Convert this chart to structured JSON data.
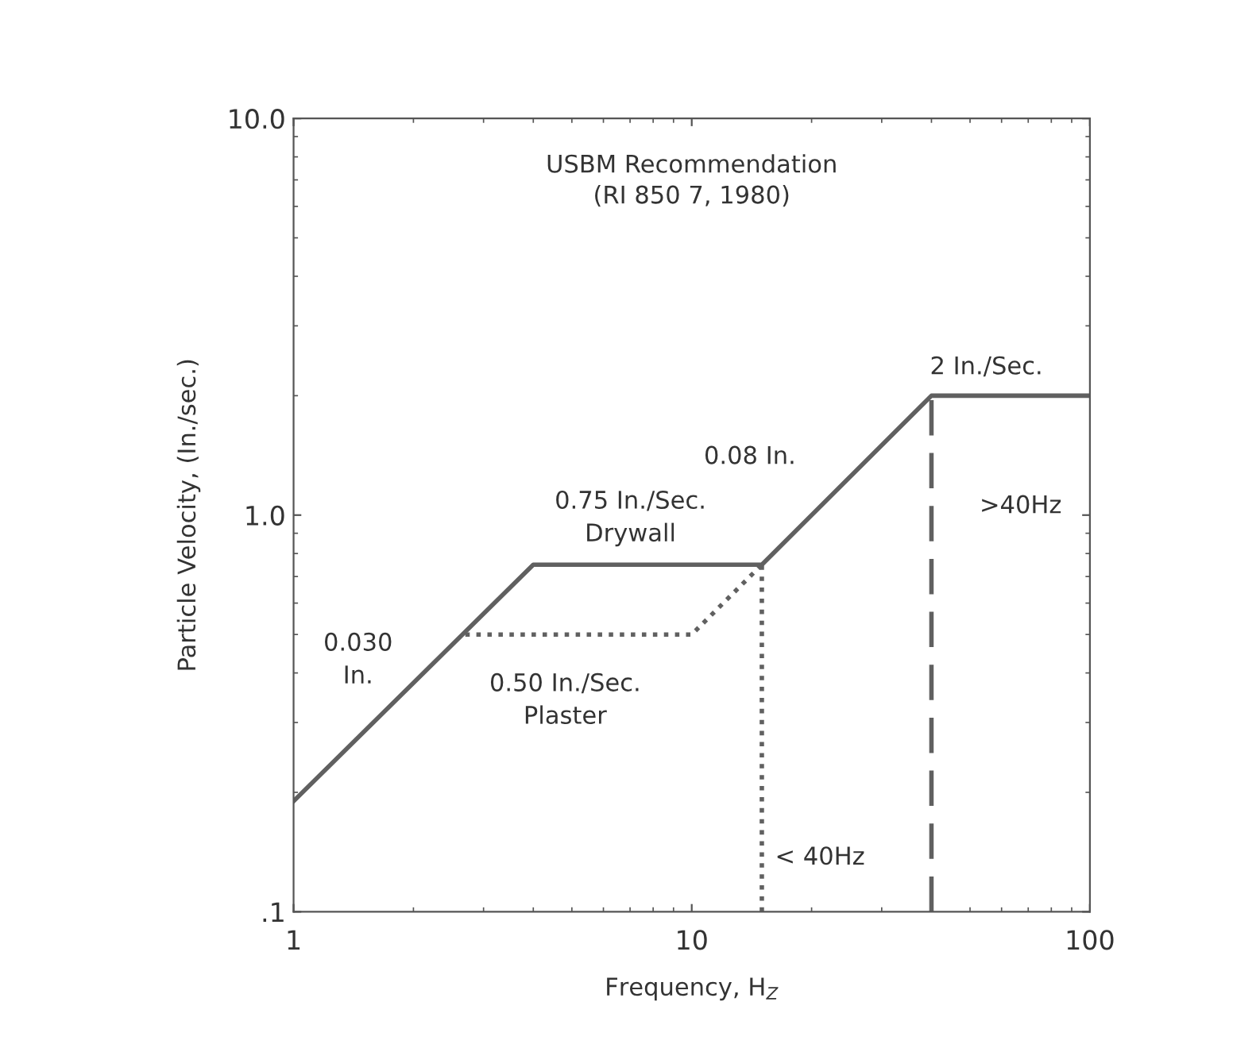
{
  "chart_data": {
    "type": "line",
    "title": "USBM Recommendation\n(RI 850 7, 1980)",
    "xlabel": "Frequency, H$_{Z}$",
    "ylabel": "Particle Velocity, (In./sec.)",
    "log": "xy",
    "xlim": [
      1,
      100
    ],
    "ylim": [
      0.1,
      10
    ],
    "xticks": [
      1,
      10,
      100
    ],
    "yticks": [
      {
        "value": 0.1,
        "label": ".1"
      },
      {
        "value": 1,
        "label": "1.0"
      },
      {
        "value": 10,
        "label": "10.0"
      }
    ],
    "grid": false,
    "legend": false,
    "marker": "none",
    "series": [
      {
        "x": [
          1,
          4,
          15,
          40,
          100
        ],
        "values": [
          0.19,
          0.75,
          0.75,
          2,
          2
        ],
        "color": "#606060",
        "line_style": "solid"
      },
      {
        "x": [
          2.7,
          10,
          15
        ],
        "values": [
          0.5,
          0.5,
          0.75
        ],
        "color": "#606060",
        "line_style": "dotted"
      },
      {
        "x": [
          15,
          15
        ],
        "values": [
          0.1,
          0.75
        ],
        "color": "#606060",
        "line_style": "dotted"
      },
      {
        "x": [
          40,
          40
        ],
        "values": [
          0.1,
          2
        ],
        "color": "#606060",
        "line_style": "dashed"
      }
    ],
    "annotations": [
      "0.030\nIn.",
      "0.75 In./Sec.\nDrywall",
      "0.50 In./Sec.\nPlaster",
      "0.08 In.",
      "2 In./Sec.",
      ">40Hz",
      "< 40Hz"
    ]
  }
}
